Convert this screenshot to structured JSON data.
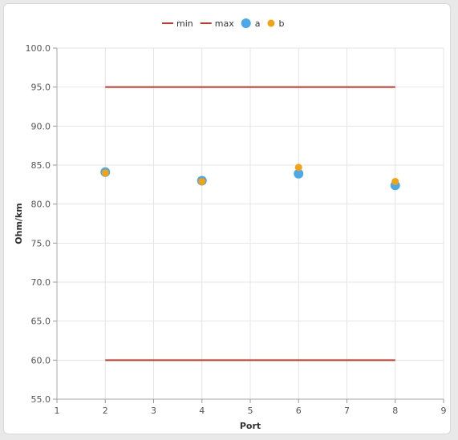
{
  "chart_data": {
    "type": "scatter",
    "title": "",
    "xlabel": "Port",
    "ylabel": "Ohm/km",
    "xlim": [
      1,
      9
    ],
    "ylim": [
      55,
      100
    ],
    "xticks": [
      "1",
      "2",
      "3",
      "4",
      "5",
      "6",
      "7",
      "8",
      "9"
    ],
    "yticks": [
      "55.0",
      "60.0",
      "65.0",
      "70.0",
      "75.0",
      "80.0",
      "85.0",
      "90.0",
      "95.0",
      "100.0"
    ],
    "grid": true,
    "legend_position": "top-center",
    "series": [
      {
        "name": "min",
        "kind": "line",
        "color": "#c0392b",
        "x": [
          2,
          8
        ],
        "y": [
          60,
          60
        ]
      },
      {
        "name": "max",
        "kind": "line",
        "color": "#c0392b",
        "x": [
          2,
          8
        ],
        "y": [
          95,
          95
        ]
      },
      {
        "name": "a",
        "kind": "scatter",
        "color": "#4aa8ec",
        "x": [
          2,
          4,
          6,
          8
        ],
        "y": [
          84.1,
          83.0,
          83.9,
          82.4
        ]
      },
      {
        "name": "b",
        "kind": "scatter",
        "color": "#f2a30f",
        "x": [
          2,
          4,
          6,
          8
        ],
        "y": [
          84.0,
          82.9,
          84.7,
          82.9
        ]
      }
    ]
  }
}
